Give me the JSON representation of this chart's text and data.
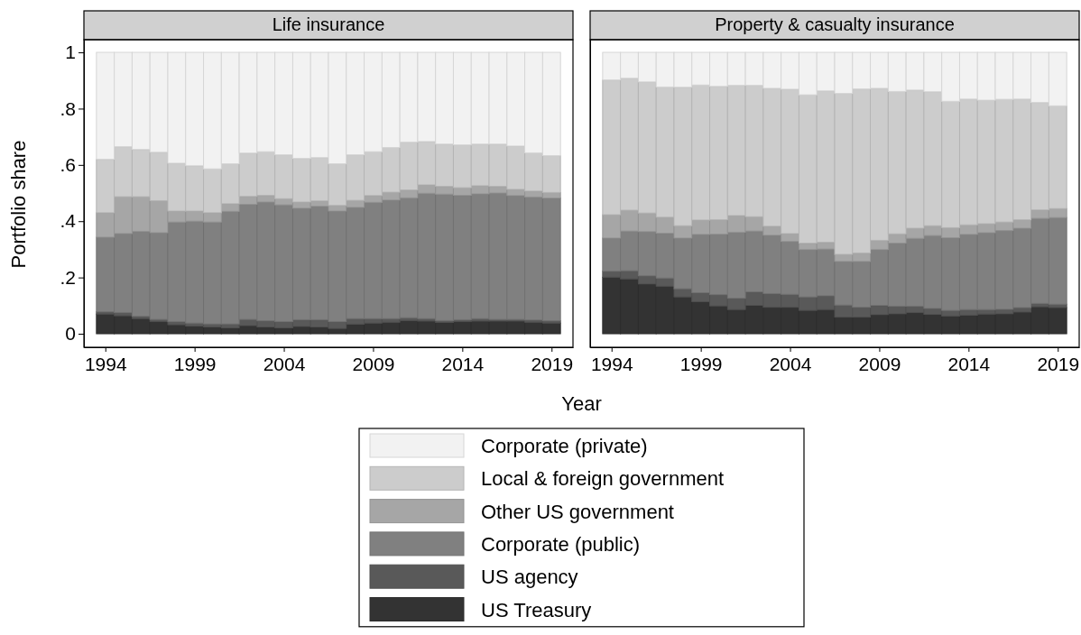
{
  "chart_data": [
    {
      "type": "bar",
      "stacked": true,
      "title": "Life insurance",
      "xlabel": "Year",
      "ylabel": "Portfolio share",
      "legend": "bottom",
      "x": [
        1994,
        1995,
        1996,
        1997,
        1998,
        1999,
        2000,
        2001,
        2002,
        2003,
        2004,
        2005,
        2006,
        2007,
        2008,
        2009,
        2010,
        2011,
        2012,
        2013,
        2014,
        2015,
        2016,
        2017,
        2018,
        2019
      ],
      "xlim": [
        1992.8,
        2020.2
      ],
      "xticks": [
        1994,
        1999,
        2004,
        2009,
        2014,
        2019
      ],
      "ylim": [
        -0.048,
        1.045
      ],
      "yticks": [
        0,
        {
          "value": 0.2,
          "label": ".2"
        },
        {
          "value": 0.4,
          "label": ".4"
        },
        {
          "value": 0.6,
          "label": ".6"
        },
        {
          "value": 0.8,
          "label": ".8"
        },
        1
      ],
      "series": [
        {
          "name": "US Treasury",
          "color": "#333333",
          "values": [
            0.07,
            0.064,
            0.054,
            0.043,
            0.032,
            0.027,
            0.024,
            0.021,
            0.029,
            0.024,
            0.021,
            0.026,
            0.024,
            0.019,
            0.034,
            0.038,
            0.041,
            0.047,
            0.045,
            0.04,
            0.043,
            0.045,
            0.045,
            0.045,
            0.041,
            0.038
          ]
        },
        {
          "name": "US agency",
          "color": "#595959",
          "values": [
            0.008,
            0.011,
            0.008,
            0.008,
            0.011,
            0.011,
            0.011,
            0.014,
            0.022,
            0.022,
            0.022,
            0.024,
            0.026,
            0.024,
            0.02,
            0.016,
            0.013,
            0.01,
            0.009,
            0.007,
            0.007,
            0.009,
            0.006,
            0.006,
            0.008,
            0.008
          ]
        },
        {
          "name": "Corporate (public)",
          "color": "#808080",
          "values": [
            0.265,
            0.281,
            0.302,
            0.308,
            0.354,
            0.362,
            0.362,
            0.4,
            0.409,
            0.422,
            0.415,
            0.396,
            0.403,
            0.393,
            0.395,
            0.413,
            0.421,
            0.426,
            0.445,
            0.449,
            0.442,
            0.443,
            0.449,
            0.44,
            0.437,
            0.436
          ]
        },
        {
          "name": "Other US government",
          "color": "#a6a6a6",
          "values": [
            0.087,
            0.131,
            0.123,
            0.114,
            0.039,
            0.036,
            0.033,
            0.027,
            0.028,
            0.024,
            0.022,
            0.022,
            0.019,
            0.02,
            0.025,
            0.024,
            0.028,
            0.028,
            0.03,
            0.028,
            0.027,
            0.029,
            0.024,
            0.022,
            0.021,
            0.02
          ]
        },
        {
          "name": "Local & foreign government",
          "color": "#cccccc",
          "values": [
            0.19,
            0.178,
            0.168,
            0.172,
            0.17,
            0.161,
            0.156,
            0.142,
            0.154,
            0.155,
            0.156,
            0.155,
            0.154,
            0.148,
            0.162,
            0.156,
            0.159,
            0.17,
            0.154,
            0.15,
            0.152,
            0.148,
            0.15,
            0.154,
            0.136,
            0.131
          ]
        },
        {
          "name": "Corporate (private)",
          "color": "#f2f2f2",
          "values": [
            0.38,
            0.335,
            0.345,
            0.355,
            0.394,
            0.403,
            0.414,
            0.396,
            0.358,
            0.353,
            0.364,
            0.377,
            0.374,
            0.396,
            0.364,
            0.353,
            0.338,
            0.319,
            0.317,
            0.326,
            0.329,
            0.326,
            0.326,
            0.333,
            0.357,
            0.367
          ]
        }
      ]
    },
    {
      "type": "bar",
      "stacked": true,
      "title": "Property & casualty insurance",
      "tick_labels": "x",
      "x": [
        1994,
        1995,
        1996,
        1997,
        1998,
        1999,
        2000,
        2001,
        2002,
        2003,
        2004,
        2005,
        2006,
        2007,
        2008,
        2009,
        2010,
        2011,
        2012,
        2013,
        2014,
        2015,
        2016,
        2017,
        2018,
        2019
      ],
      "xlim": [
        1992.8,
        2020.2
      ],
      "xticks": [
        1994,
        1999,
        2004,
        2009,
        2014,
        2019
      ],
      "ylim": [
        -0.048,
        1.045
      ],
      "series": [
        {
          "color": "#333333",
          "values": [
            0.201,
            0.195,
            0.177,
            0.169,
            0.131,
            0.114,
            0.099,
            0.086,
            0.101,
            0.094,
            0.094,
            0.083,
            0.086,
            0.059,
            0.059,
            0.068,
            0.071,
            0.075,
            0.069,
            0.063,
            0.066,
            0.07,
            0.071,
            0.077,
            0.096,
            0.093
          ]
        },
        {
          "color": "#595959",
          "values": [
            0.021,
            0.029,
            0.029,
            0.029,
            0.029,
            0.032,
            0.04,
            0.04,
            0.048,
            0.049,
            0.046,
            0.048,
            0.049,
            0.043,
            0.035,
            0.033,
            0.027,
            0.023,
            0.021,
            0.02,
            0.02,
            0.016,
            0.016,
            0.016,
            0.012,
            0.012
          ]
        },
        {
          "color": "#808080",
          "values": [
            0.118,
            0.141,
            0.157,
            0.159,
            0.18,
            0.207,
            0.215,
            0.235,
            0.216,
            0.207,
            0.188,
            0.168,
            0.166,
            0.155,
            0.163,
            0.198,
            0.224,
            0.241,
            0.259,
            0.258,
            0.267,
            0.273,
            0.28,
            0.282,
            0.302,
            0.308
          ]
        },
        {
          "color": "#a6a6a6",
          "values": [
            0.083,
            0.074,
            0.066,
            0.057,
            0.044,
            0.051,
            0.051,
            0.059,
            0.051,
            0.032,
            0.028,
            0.023,
            0.024,
            0.025,
            0.03,
            0.033,
            0.033,
            0.036,
            0.035,
            0.036,
            0.034,
            0.032,
            0.03,
            0.03,
            0.03,
            0.032
          ]
        },
        {
          "color": "#cccccc",
          "values": [
            0.479,
            0.469,
            0.466,
            0.463,
            0.492,
            0.48,
            0.474,
            0.463,
            0.467,
            0.49,
            0.513,
            0.527,
            0.538,
            0.572,
            0.583,
            0.54,
            0.506,
            0.491,
            0.476,
            0.449,
            0.447,
            0.439,
            0.436,
            0.429,
            0.382,
            0.365
          ]
        },
        {
          "color": "#f2f2f2",
          "values": [
            0.098,
            0.092,
            0.105,
            0.123,
            0.124,
            0.116,
            0.121,
            0.117,
            0.117,
            0.128,
            0.131,
            0.151,
            0.137,
            0.146,
            0.13,
            0.128,
            0.139,
            0.134,
            0.14,
            0.174,
            0.166,
            0.17,
            0.167,
            0.166,
            0.178,
            0.19
          ]
        }
      ]
    }
  ]
}
